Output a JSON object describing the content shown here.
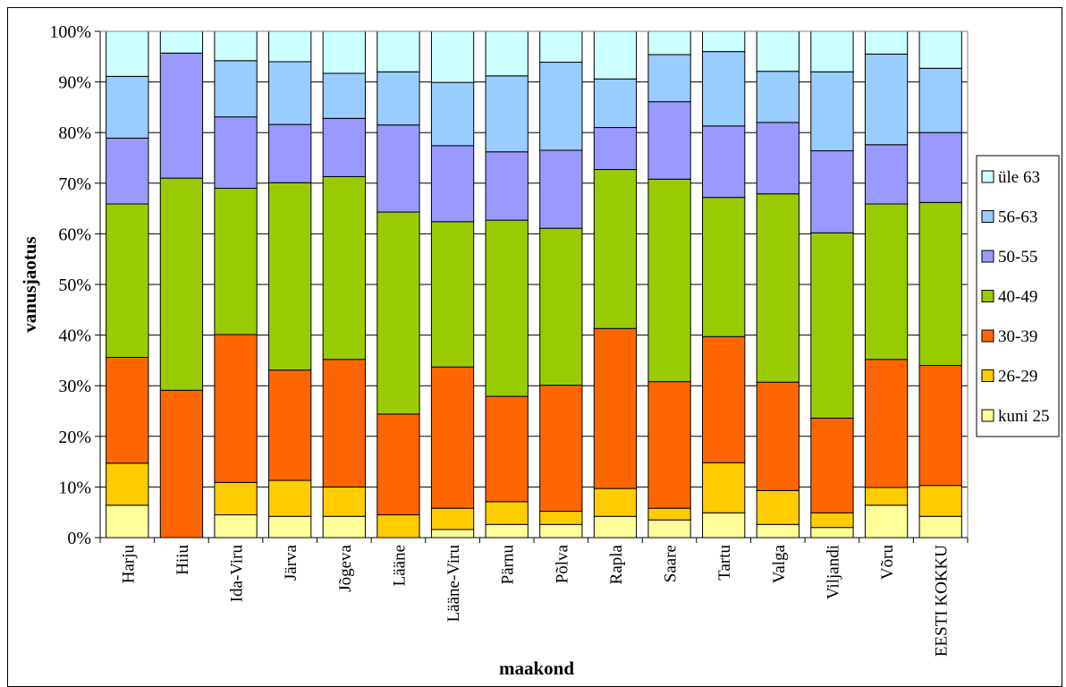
{
  "chart_data": {
    "type": "bar",
    "stacked": true,
    "percent": true,
    "title": "",
    "xlabel": "maakond",
    "ylabel": "vanusjaotus",
    "ylim": [
      0,
      100
    ],
    "yticks": [
      "0%",
      "10%",
      "20%",
      "30%",
      "40%",
      "50%",
      "60%",
      "70%",
      "80%",
      "90%",
      "100%"
    ],
    "grid": "horizontal",
    "legend_position": "right",
    "categories": [
      "Harju",
      "Hiiu",
      "Ida-Viru",
      "Järva",
      "Jõgeva",
      "Lääne",
      "Lääne-Viru",
      "Pärnu",
      "Põlva",
      "Rapla",
      "Saare",
      "Tartu",
      "Valga",
      "Viljandi",
      "Võru",
      "EESTI KOKKU"
    ],
    "series": [
      {
        "name": "kuni 25",
        "color": "#ffff99",
        "values": [
          6.4,
          0.0,
          4.5,
          4.2,
          4.2,
          0.0,
          1.6,
          2.6,
          2.6,
          4.2,
          3.5,
          4.9,
          2.6,
          2.0,
          6.4,
          4.2
        ]
      },
      {
        "name": "26-29",
        "color": "#ffcc00",
        "values": [
          8.3,
          0.0,
          6.4,
          7.1,
          5.8,
          4.5,
          4.2,
          4.5,
          2.6,
          5.5,
          2.3,
          9.9,
          6.7,
          2.9,
          3.5,
          6.1
        ]
      },
      {
        "name": "30-39",
        "color": "#ff6600",
        "values": [
          20.9,
          29.1,
          29.2,
          21.8,
          25.2,
          19.9,
          27.9,
          20.8,
          24.9,
          31.6,
          25.0,
          24.9,
          21.4,
          18.7,
          25.3,
          23.7
        ]
      },
      {
        "name": "40-49",
        "color": "#99cc00",
        "values": [
          30.3,
          41.9,
          28.9,
          37.0,
          36.1,
          39.9,
          28.7,
          34.8,
          31.0,
          31.4,
          40.0,
          27.5,
          37.2,
          36.6,
          30.7,
          32.2
        ]
      },
      {
        "name": "50-55",
        "color": "#9999ff",
        "values": [
          13.0,
          24.7,
          14.1,
          11.5,
          11.5,
          17.2,
          15.0,
          13.5,
          15.4,
          8.3,
          15.3,
          14.1,
          14.1,
          16.2,
          11.7,
          13.8
        ]
      },
      {
        "name": "56-63",
        "color": "#99ccff",
        "values": [
          12.2,
          0.0,
          11.1,
          12.4,
          8.9,
          10.5,
          12.5,
          15.0,
          17.4,
          9.6,
          9.3,
          14.7,
          10.1,
          15.6,
          17.9,
          12.7
        ]
      },
      {
        "name": "üle 63",
        "color": "#ccffff",
        "values": [
          8.9,
          4.3,
          5.8,
          6.0,
          8.3,
          8.0,
          10.1,
          8.8,
          6.1,
          9.4,
          4.6,
          4.0,
          7.9,
          8.0,
          4.5,
          7.3
        ]
      }
    ]
  }
}
